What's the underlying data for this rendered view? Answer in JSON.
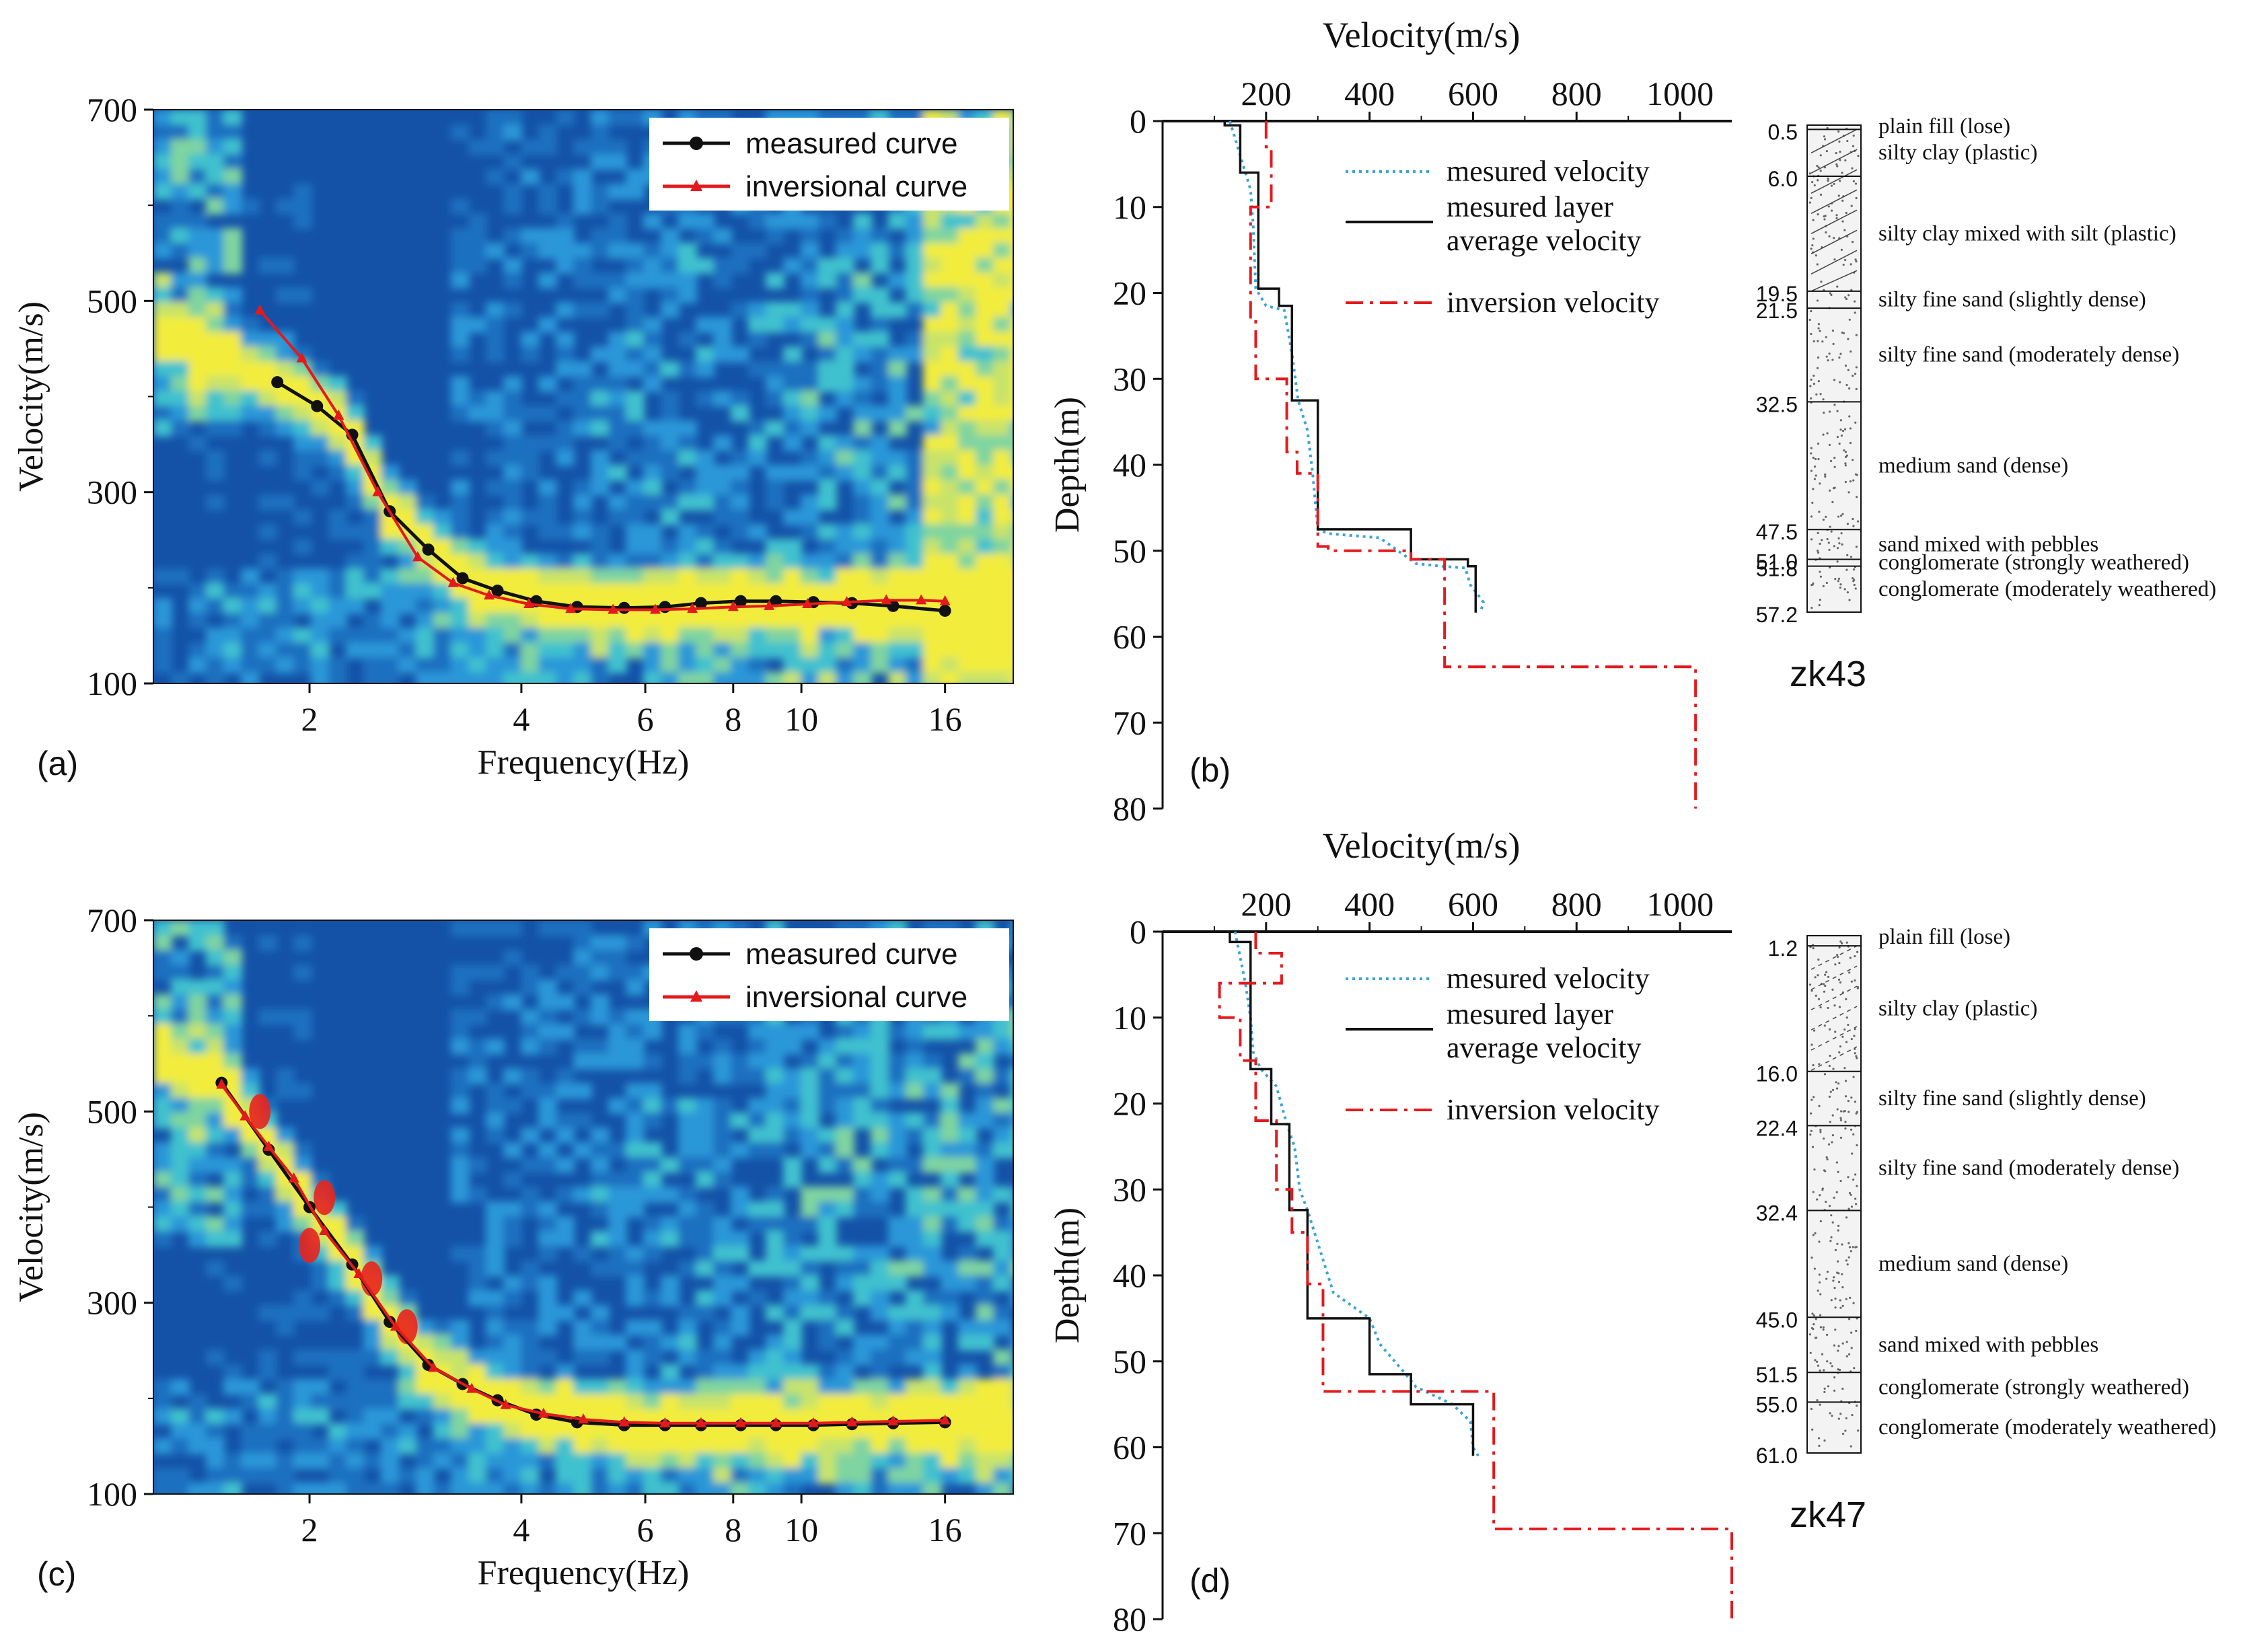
{
  "chart_data": [
    {
      "panel": "(a)",
      "type": "line",
      "xlabel": "Frequency(Hz)",
      "ylabel": "Velocity(m/s)",
      "xscale": "log",
      "xlim": [
        1.2,
        20
      ],
      "ylim": [
        100,
        700
      ],
      "xticks": [
        2,
        4,
        6,
        8,
        10,
        16
      ],
      "yticks": [
        100,
        300,
        500,
        700
      ],
      "background": "dispersion energy spectrum heatmap",
      "legend": "top-right",
      "series": [
        {
          "name": "measured curve",
          "color": "#111111",
          "marker": "circle",
          "x": [
            1.8,
            2.05,
            2.3,
            2.6,
            2.95,
            3.3,
            3.7,
            4.2,
            4.8,
            5.6,
            6.4,
            7.2,
            8.2,
            9.2,
            10.4,
            11.8,
            13.5,
            16
          ],
          "y": [
            415,
            390,
            360,
            280,
            240,
            210,
            197,
            186,
            180,
            179,
            180,
            184,
            186,
            186,
            185,
            184,
            181,
            176
          ]
        },
        {
          "name": "inversional curve",
          "color": "#e31a1c",
          "marker": "triangle",
          "x": [
            1.7,
            1.95,
            2.2,
            2.5,
            2.85,
            3.2,
            3.6,
            4.1,
            4.7,
            5.4,
            6.2,
            7.0,
            8.0,
            9.0,
            10.2,
            11.6,
            13.2,
            14.8,
            16
          ],
          "y": [
            490,
            440,
            380,
            300,
            232,
            205,
            192,
            183,
            178,
            177,
            177,
            178,
            180,
            181,
            183,
            185,
            187,
            187,
            186
          ]
        }
      ]
    },
    {
      "panel": "(b)",
      "type": "line",
      "title": "Velocity(m/s)",
      "xlabel": "Velocity(m/s)",
      "ylabel": "Depth(m)",
      "xlim": [
        0,
        1100
      ],
      "ylim": [
        80,
        0
      ],
      "xticks": [
        200,
        400,
        600,
        800,
        1000
      ],
      "yticks": [
        0,
        10,
        20,
        30,
        40,
        50,
        60,
        70,
        80
      ],
      "legend": "top-right",
      "series": [
        {
          "name": "mesured velocity",
          "color": "#3ca4d6",
          "style": "dotted",
          "x": [
            130,
            140,
            150,
            160,
            170,
            175,
            180,
            200,
            235,
            250,
            262,
            280,
            290,
            300,
            320,
            420,
            490,
            540,
            585,
            595,
            608,
            620,
            615
          ],
          "y": [
            0,
            2,
            4,
            6,
            8,
            12,
            19.5,
            21.5,
            22,
            27,
            32.5,
            36,
            41,
            47.5,
            48,
            48.5,
            51.5,
            51.8,
            52,
            54,
            55,
            56,
            57
          ]
        },
        {
          "name": "mesured layer average velocity",
          "color": "#111111",
          "style": "solid",
          "x": [
            120,
            120,
            150,
            150,
            185,
            185,
            225,
            225,
            250,
            250,
            300,
            300,
            480,
            480,
            590,
            590,
            605,
            605
          ],
          "y": [
            0,
            0.5,
            0.5,
            6,
            6,
            19.5,
            19.5,
            21.5,
            21.5,
            32.5,
            32.5,
            47.5,
            47.5,
            51,
            51,
            51.8,
            51.8,
            57.2
          ]
        },
        {
          "name": "inversion velocity",
          "color": "#e31a1c",
          "style": "dashdot",
          "x": [
            200,
            200,
            210,
            210,
            170,
            170,
            180,
            180,
            240,
            240,
            260,
            260,
            300,
            300,
            320,
            320,
            480,
            480,
            545,
            545,
            1030,
            1030
          ],
          "y": [
            0,
            3,
            3,
            10,
            10,
            23,
            23,
            30,
            30,
            38.5,
            38.5,
            41,
            41,
            49.5,
            49.5,
            50,
            50,
            51,
            51,
            63.5,
            63.5,
            80
          ]
        }
      ],
      "borehole": {
        "name": "zk43",
        "depth_labels": [
          "0.5",
          "6.0",
          "19.5",
          "21.5",
          "32.5",
          "47.5",
          "51.0",
          "51.8",
          "57.2"
        ],
        "depths": [
          0.5,
          6.0,
          19.5,
          21.5,
          32.5,
          47.5,
          51.0,
          51.8,
          57.2
        ],
        "layers": [
          {
            "label": "plain fill (lose)",
            "depth": 0.5
          },
          {
            "label": "silty clay (plastic)",
            "depth": 6.0
          },
          {
            "label": "silty clay mixed with silt (plastic)",
            "depth": 19.5
          },
          {
            "label": "silty fine sand (slightly dense)",
            "depth": 21.5
          },
          {
            "label": "silty fine sand (moderately dense)",
            "depth": 32.5
          },
          {
            "label": "medium sand (dense)",
            "depth": 47.5
          },
          {
            "label": "sand mixed with pebbles",
            "depth": 51.0
          },
          {
            "label": "conglomerate (strongly weathered)",
            "depth": 51.8
          },
          {
            "label": "conglomerate (moderately weathered)",
            "depth": 57.2
          }
        ]
      }
    },
    {
      "panel": "(c)",
      "type": "line",
      "xlabel": "Frequency(Hz)",
      "ylabel": "Velocity(m/s)",
      "xscale": "log",
      "xlim": [
        1.2,
        20
      ],
      "ylim": [
        100,
        700
      ],
      "xticks": [
        2,
        4,
        6,
        8,
        10,
        16
      ],
      "yticks": [
        100,
        300,
        500,
        700
      ],
      "background": "dispersion energy spectrum heatmap",
      "legend": "top-right",
      "series": [
        {
          "name": "measured curve",
          "color": "#111111",
          "marker": "circle",
          "x": [
            1.5,
            1.75,
            2.0,
            2.3,
            2.6,
            2.95,
            3.3,
            3.7,
            4.2,
            4.8,
            5.6,
            6.4,
            7.2,
            8.2,
            9.2,
            10.4,
            11.8,
            13.5,
            16
          ],
          "y": [
            530,
            460,
            400,
            340,
            280,
            235,
            215,
            198,
            183,
            175,
            172,
            172,
            172,
            172,
            172,
            172,
            173,
            174,
            175
          ]
        },
        {
          "name": "inversional curve",
          "color": "#e31a1c",
          "marker": "triangle",
          "x": [
            1.5,
            1.62,
            1.75,
            1.9,
            2.1,
            2.35,
            2.65,
            3.0,
            3.4,
            3.8,
            4.3,
            4.9,
            5.6,
            6.4,
            7.2,
            8.2,
            9.2,
            10.4,
            11.8,
            13.5,
            16
          ],
          "y": [
            528,
            495,
            463,
            430,
            375,
            330,
            275,
            232,
            210,
            193,
            184,
            178,
            175,
            174,
            174,
            174,
            174,
            174,
            175,
            176,
            177
          ]
        }
      ]
    },
    {
      "panel": "(d)",
      "type": "line",
      "title": "Velocity(m/s)",
      "xlabel": "Velocity(m/s)",
      "ylabel": "Depth(m)",
      "xlim": [
        0,
        1100
      ],
      "ylim": [
        80,
        0
      ],
      "xticks": [
        200,
        400,
        600,
        800,
        1000
      ],
      "yticks": [
        0,
        10,
        20,
        30,
        40,
        50,
        60,
        70,
        80
      ],
      "legend": "top-right",
      "series": [
        {
          "name": "mesured velocity",
          "color": "#3ca4d6",
          "style": "dotted",
          "x": [
            140,
            150,
            160,
            170,
            175,
            190,
            220,
            240,
            255,
            265,
            280,
            330,
            400,
            420,
            470,
            490,
            560,
            595,
            600,
            610
          ],
          "y": [
            0,
            3,
            6,
            10,
            14,
            16,
            18,
            22.4,
            25,
            30,
            32.4,
            42,
            45,
            48,
            51.5,
            53,
            55,
            57,
            60,
            61
          ]
        },
        {
          "name": "mesured layer average velocity",
          "color": "#111111",
          "style": "solid",
          "x": [
            130,
            130,
            170,
            170,
            210,
            210,
            245,
            245,
            280,
            280,
            400,
            400,
            480,
            480,
            600,
            600
          ],
          "y": [
            0,
            1.2,
            1.2,
            16,
            16,
            22.4,
            22.4,
            32.4,
            32.4,
            45,
            45,
            51.5,
            51.5,
            55,
            55,
            61
          ]
        },
        {
          "name": "inversion velocity",
          "color": "#e31a1c",
          "style": "dashdot",
          "x": [
            180,
            180,
            230,
            230,
            110,
            110,
            150,
            150,
            180,
            180,
            220,
            220,
            250,
            250,
            280,
            280,
            310,
            310,
            640,
            640,
            1100,
            1100
          ],
          "y": [
            0,
            2.5,
            2.5,
            6,
            6,
            10,
            10,
            15,
            15,
            22,
            22,
            30,
            30,
            35,
            35,
            41,
            41,
            53.5,
            53.5,
            69.5,
            69.5,
            80
          ]
        }
      ],
      "borehole": {
        "name": "zk47",
        "depth_labels": [
          "1.2",
          "16.0",
          "22.4",
          "32.4",
          "45.0",
          "51.5",
          "55.0",
          "61.0"
        ],
        "depths": [
          1.2,
          16.0,
          22.4,
          32.4,
          45.0,
          51.5,
          55.0,
          61.0
        ],
        "layers": [
          {
            "label": "plain fill (lose)",
            "depth": 1.2
          },
          {
            "label": "silty clay (plastic)",
            "depth": 16.0
          },
          {
            "label": "silty fine sand (slightly dense)",
            "depth": 22.4
          },
          {
            "label": "silty fine sand (moderately dense)",
            "depth": 32.4
          },
          {
            "label": "medium sand (dense)",
            "depth": 45.0
          },
          {
            "label": "sand mixed with pebbles",
            "depth": 51.5
          },
          {
            "label": "conglomerate (strongly weathered)",
            "depth": 55.0
          },
          {
            "label": "conglomerate (moderately weathered)",
            "depth": 61.0
          }
        ]
      }
    }
  ]
}
